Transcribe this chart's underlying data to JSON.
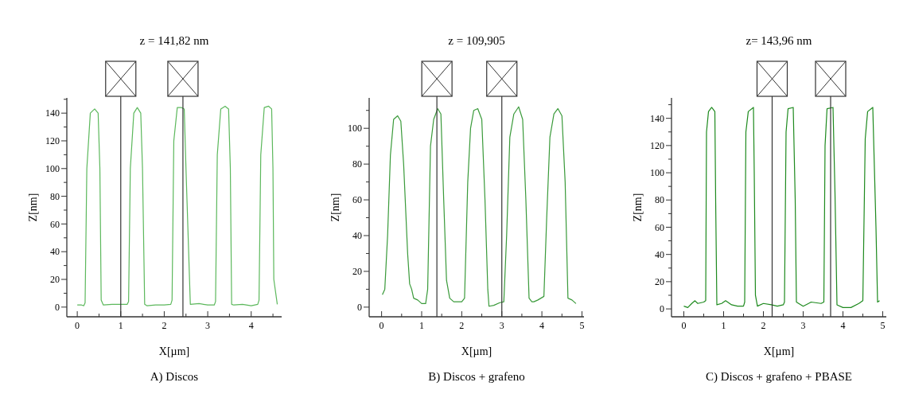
{
  "chart_data": [
    {
      "type": "line",
      "title": "z = 141,82 nm",
      "xlabel": "X[µm]",
      "ylabel": "Z[nm]",
      "annotations": [
        "A) Discos"
      ],
      "xlim": [
        -0.24,
        4.7
      ],
      "ylim": [
        -7,
        151
      ],
      "xticks": [
        0,
        {
          "value": 0.5,
          "label": null
        },
        1,
        {
          "value": 1.5,
          "label": null
        },
        2,
        {
          "value": 2.5,
          "label": null
        },
        3,
        {
          "value": 3.5,
          "label": null
        },
        4,
        {
          "value": 4.5,
          "label": null
        }
      ],
      "yticks": [
        0,
        {
          "value": 10,
          "label": null
        },
        20,
        {
          "value": 30,
          "label": null
        },
        40,
        {
          "value": 50,
          "label": null
        },
        60,
        {
          "value": 70,
          "label": null
        },
        80,
        {
          "value": 90,
          "label": null
        },
        100,
        {
          "value": 110,
          "label": null
        },
        120,
        {
          "value": 130,
          "label": null
        },
        140,
        {
          "value": 150,
          "label": null
        }
      ],
      "ref_lines": [
        {
          "axis": "x",
          "value": 1.0
        },
        {
          "axis": "x",
          "value": 2.43
        }
      ],
      "series": [
        {
          "color": "#5cb85c",
          "x": [
            0,
            0.1,
            0.15,
            0.18,
            0.22,
            0.3,
            0.4,
            0.48,
            0.52,
            0.55,
            0.6,
            0.8,
            1.0,
            1.15,
            1.18,
            1.22,
            1.3,
            1.38,
            1.46,
            1.5,
            1.55,
            1.6,
            1.8,
            2.0,
            2.15,
            2.18,
            2.22,
            2.3,
            2.4,
            2.46,
            2.5,
            2.6,
            2.8,
            3.0,
            3.15,
            3.18,
            3.22,
            3.3,
            3.4,
            3.48,
            3.52,
            3.55,
            3.6,
            3.8,
            4.0,
            4.15,
            4.18,
            4.22,
            4.3,
            4.4,
            4.47,
            4.5,
            4.52,
            4.6
          ],
          "values": [
            1.5,
            1.5,
            1,
            3,
            100,
            140,
            143,
            140,
            100,
            5,
            1.5,
            2,
            2,
            2,
            4,
            100,
            140,
            144,
            140,
            100,
            2,
            1,
            1.5,
            1.5,
            2,
            5,
            120,
            144,
            144,
            143,
            100,
            2,
            2.5,
            1.5,
            1.5,
            4,
            110,
            143,
            145,
            143,
            100,
            2,
            1.5,
            2,
            1,
            2,
            5,
            110,
            144,
            145,
            143,
            100,
            20,
            2
          ]
        }
      ]
    },
    {
      "type": "line",
      "title": "z = 109,905",
      "xlabel": "X[µm]",
      "ylabel": "Z[nm]",
      "annotations": [
        "B) Discos + grafeno"
      ],
      "xlim": [
        -0.31,
        5.05
      ],
      "ylim": [
        -5.4,
        117
      ],
      "xticks": [
        0,
        {
          "value": 0.5,
          "label": null
        },
        1,
        {
          "value": 1.5,
          "label": null
        },
        2,
        {
          "value": 2.5,
          "label": null
        },
        3,
        {
          "value": 3.5,
          "label": null
        },
        4,
        {
          "value": 4.5,
          "label": null
        },
        5
      ],
      "yticks": [
        0,
        {
          "value": 10,
          "label": null
        },
        20,
        {
          "value": 30,
          "label": null
        },
        40,
        {
          "value": 50,
          "label": null
        },
        60,
        {
          "value": 70,
          "label": null
        },
        80,
        {
          "value": 90,
          "label": null
        },
        100,
        {
          "value": 110,
          "label": null
        }
      ],
      "ref_lines": [
        {
          "axis": "x",
          "value": 1.38
        },
        {
          "axis": "x",
          "value": 3.0
        }
      ],
      "series": [
        {
          "color": "#3a9a3a",
          "x": [
            0.02,
            0.08,
            0.15,
            0.22,
            0.3,
            0.4,
            0.48,
            0.55,
            0.65,
            0.7,
            0.75,
            0.8,
            0.9,
            1.0,
            1.1,
            1.15,
            1.22,
            1.3,
            1.4,
            1.48,
            1.55,
            1.62,
            1.7,
            1.8,
            2.0,
            2.07,
            2.15,
            2.22,
            2.3,
            2.4,
            2.5,
            2.58,
            2.65,
            2.68,
            2.8,
            2.95,
            3.05,
            3.12,
            3.2,
            3.3,
            3.42,
            3.52,
            3.6,
            3.68,
            3.75,
            3.8,
            3.9,
            4.05,
            4.12,
            4.2,
            4.3,
            4.4,
            4.5,
            4.58,
            4.65,
            4.75,
            4.85
          ],
          "values": [
            7,
            10,
            40,
            85,
            105,
            107,
            104,
            80,
            30,
            13,
            10,
            5,
            4,
            2,
            2,
            10,
            90,
            105,
            111,
            108,
            60,
            15,
            5,
            3,
            3,
            5,
            70,
            100,
            110,
            111,
            105,
            60,
            10,
            0.5,
            1,
            2.5,
            3,
            40,
            95,
            108,
            112,
            105,
            60,
            5,
            3,
            3,
            4,
            6,
            50,
            95,
            108,
            111,
            107,
            70,
            5,
            4,
            2
          ]
        }
      ]
    },
    {
      "type": "line",
      "title": "z= 143,96 nm",
      "xlabel": "X[µm]",
      "ylabel": "Z[nm]",
      "annotations": [
        "C) Discos + grafeno + PBASE"
      ],
      "xlim": [
        -0.31,
        5.09
      ],
      "ylim": [
        -5.8,
        155
      ],
      "xticks": [
        0,
        {
          "value": 0.5,
          "label": null
        },
        1,
        {
          "value": 1.5,
          "label": null
        },
        2,
        {
          "value": 2.5,
          "label": null
        },
        3,
        {
          "value": 3.5,
          "label": null
        },
        4,
        {
          "value": 4.5,
          "label": null
        },
        5
      ],
      "yticks": [
        0,
        {
          "value": 10,
          "label": null
        },
        20,
        {
          "value": 30,
          "label": null
        },
        40,
        {
          "value": 50,
          "label": null
        },
        60,
        {
          "value": 70,
          "label": null
        },
        80,
        {
          "value": 90,
          "label": null
        },
        100,
        {
          "value": 110,
          "label": null
        },
        120,
        {
          "value": 130,
          "label": null
        },
        140,
        {
          "value": 150,
          "label": null
        }
      ],
      "ref_lines": [
        {
          "axis": "x",
          "value": 2.22
        },
        {
          "axis": "x",
          "value": 3.69
        }
      ],
      "series": [
        {
          "color": "#1e8a1e",
          "x": [
            0,
            0.1,
            0.2,
            0.28,
            0.35,
            0.5,
            0.55,
            0.57,
            0.62,
            0.7,
            0.78,
            0.8,
            0.83,
            0.95,
            1.05,
            1.2,
            1.35,
            1.5,
            1.53,
            1.56,
            1.62,
            1.75,
            1.77,
            1.8,
            1.85,
            2.0,
            2.2,
            2.35,
            2.5,
            2.53,
            2.57,
            2.62,
            2.75,
            2.8,
            2.83,
            3.0,
            3.2,
            3.45,
            3.52,
            3.55,
            3.6,
            3.75,
            3.8,
            3.85,
            4.0,
            4.2,
            4.4,
            4.5,
            4.56,
            4.62,
            4.75,
            4.83,
            4.87,
            4.92
          ],
          "values": [
            2,
            1,
            4,
            6,
            4,
            5,
            6,
            130,
            145,
            148,
            145,
            80,
            3,
            4,
            6,
            3,
            2,
            2,
            5,
            130,
            145,
            148,
            100,
            10,
            2,
            4,
            3,
            2,
            3,
            5,
            130,
            147,
            148,
            80,
            5,
            2,
            5,
            4,
            5,
            120,
            147,
            148,
            85,
            3,
            1,
            1,
            4,
            6,
            125,
            145,
            148,
            60,
            5,
            6
          ]
        }
      ]
    }
  ]
}
